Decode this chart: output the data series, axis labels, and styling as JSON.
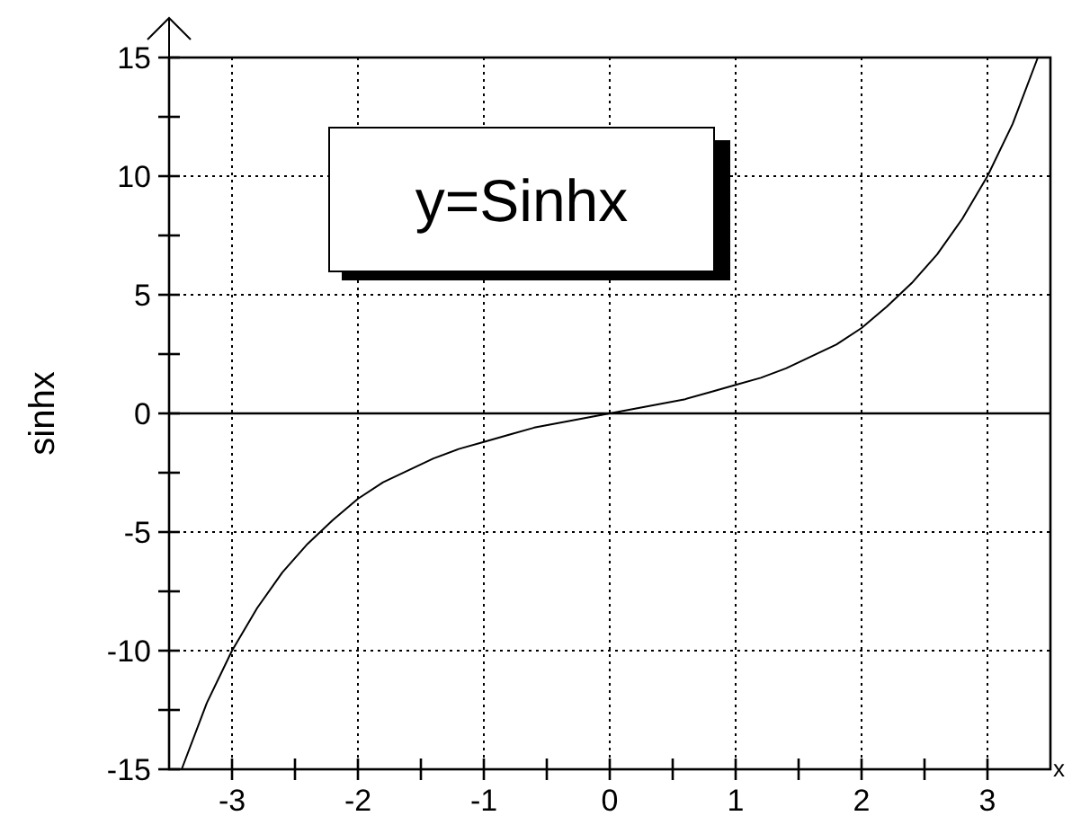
{
  "chart_data": {
    "type": "line",
    "xlabel": "x",
    "ylabel": "sinhx",
    "annotations": [
      "y=Sinhx"
    ],
    "x": [
      -3.4,
      -3.2,
      -3,
      -2.8,
      -2.6,
      -2.4,
      -2.2,
      -2,
      -1.8,
      -1.6,
      -1.4,
      -1.2,
      -1,
      -0.8,
      -0.6,
      -0.4,
      -0.2,
      0,
      0.2,
      0.4,
      0.6,
      0.8,
      1,
      1.2,
      1.4,
      1.6,
      1.8,
      2,
      2.2,
      2.4,
      2.6,
      2.8,
      3,
      3.2,
      3.4
    ],
    "series": [
      {
        "color": "#000000",
        "values": [
          -15.0,
          -12.2,
          -10.0,
          -8.2,
          -6.7,
          -5.5,
          -4.5,
          -3.6,
          -2.9,
          -2.4,
          -1.9,
          -1.5,
          -1.2,
          -0.9,
          -0.6,
          -0.4,
          -0.2,
          0,
          0.2,
          0.4,
          0.6,
          0.9,
          1.2,
          1.5,
          1.9,
          2.4,
          2.9,
          3.6,
          4.5,
          5.5,
          6.7,
          8.2,
          10.0,
          12.2,
          15.0
        ]
      }
    ],
    "xlim": [
      -3.5,
      3.5
    ],
    "ylim": [
      -15,
      15
    ],
    "xticks": [
      -3,
      {
        "value": -2.5,
        "label": null
      },
      -2,
      {
        "value": -1.5,
        "label": null
      },
      -1,
      {
        "value": -0.5,
        "label": null
      },
      0,
      {
        "value": 0.5,
        "label": null
      },
      1,
      {
        "value": 1.5,
        "label": null
      },
      2,
      {
        "value": 2.5,
        "label": null
      },
      3
    ],
    "yticks": [
      -15,
      {
        "value": -12.5,
        "label": null
      },
      -10,
      {
        "value": -7.5,
        "label": null
      },
      -5,
      {
        "value": -2.5,
        "label": null
      },
      0,
      {
        "value": 2.5,
        "label": null
      },
      5,
      {
        "value": 7.5,
        "label": null
      },
      10,
      {
        "value": 12.5,
        "label": null
      },
      15
    ],
    "grid": true,
    "ref_lines": [
      {
        "axis": "y",
        "value": 0
      }
    ],
    "marker": "none",
    "line_style": "solid"
  }
}
